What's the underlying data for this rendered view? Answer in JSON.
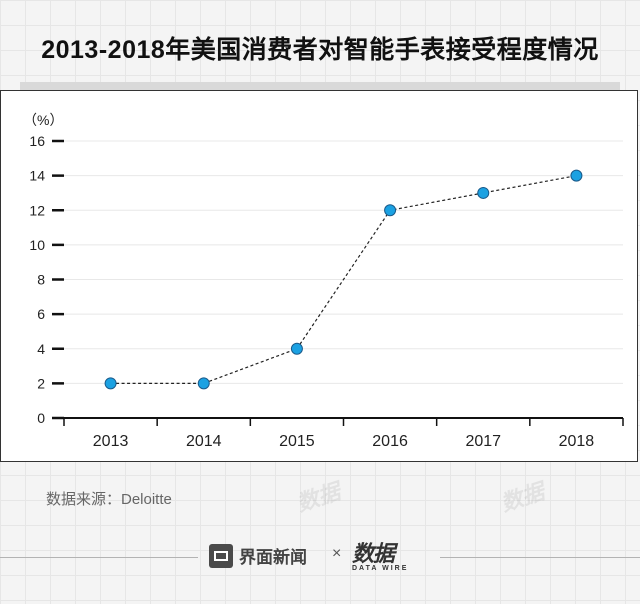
{
  "title": "2013-2018年美国消费者对智能手表接受程度情况",
  "source": "数据来源：Deloitte",
  "footer": {
    "brand_left": "界面新闻",
    "separator": "×",
    "brand_right": "数据",
    "brand_right_sub": "DATA WIRE"
  },
  "watermark_text": "数据",
  "chart_data": {
    "type": "line",
    "title": "2013-2018年美国消费者对智能手表接受程度情况",
    "ylabel": "（%）",
    "xlabel": "",
    "categories": [
      "2013",
      "2014",
      "2015",
      "2016",
      "2017",
      "2018"
    ],
    "series": [
      {
        "values": [
          2,
          2,
          4,
          12,
          13,
          14
        ]
      }
    ],
    "ylim": [
      0,
      16
    ],
    "yticks": [
      "0",
      "2",
      "4",
      "6",
      "8",
      "10",
      "12",
      "14",
      "16"
    ],
    "grid": true,
    "line_style": "dashed",
    "colors": {
      "marker": "#1ba1e2",
      "marker_stroke": "#1a5a8a",
      "line": "#222222",
      "grid": "#e8e8e8"
    }
  }
}
